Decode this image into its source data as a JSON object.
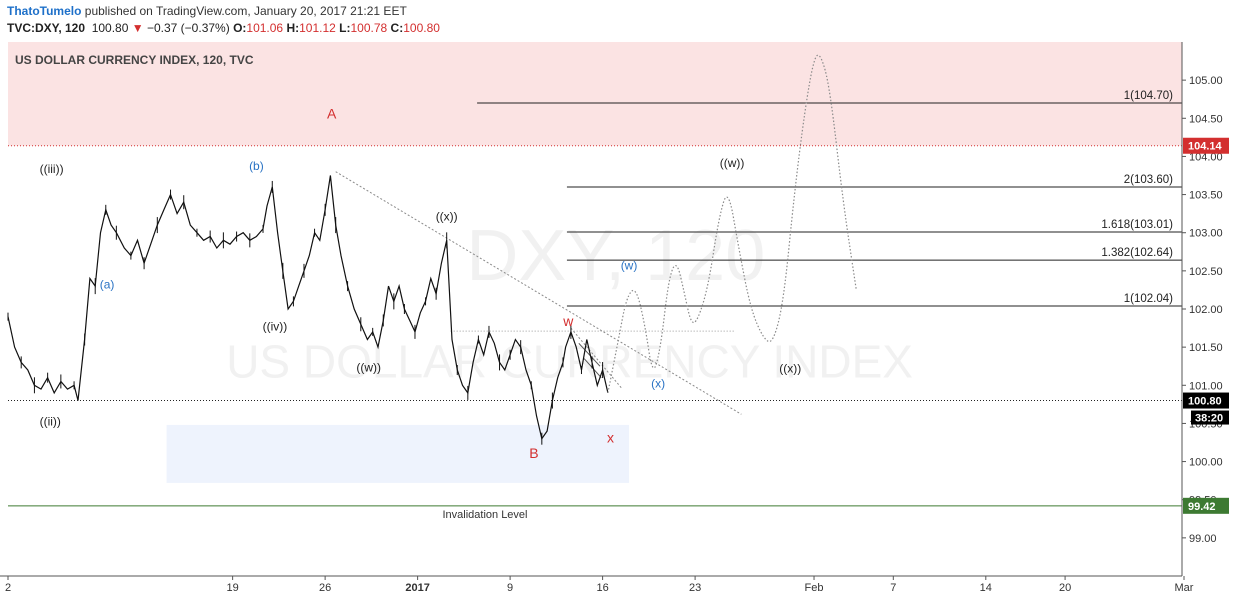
{
  "header": {
    "author": "ThatoTumelo",
    "published": "published on TradingView.com, January 20, 2017 21:21 EET",
    "ticker": "TVC:DXY, 120",
    "last": "100.80",
    "change_arrow": "▼",
    "change": "−0.37 (−0.37%)",
    "o_label": "O:",
    "o_value": "101.06",
    "h_label": "H:",
    "h_value": "101.12",
    "l_label": "L:",
    "l_value": "100.78",
    "c_label": "C:",
    "c_value": "100.80"
  },
  "chart_data": {
    "type": "line",
    "title": "US DOLLAR CURRENCY INDEX, 120, TVC",
    "watermark_symbol": "DXY, 120",
    "watermark_name": "US DOLLAR CURRENCY INDEX",
    "ylim": [
      98.5,
      105.5
    ],
    "y_ticks": [
      "99.00",
      "99.50",
      "100.00",
      "100.50",
      "101.00",
      "101.50",
      "102.00",
      "102.50",
      "103.00",
      "103.50",
      "104.00",
      "104.50",
      "105.00"
    ],
    "x_ticks": [
      {
        "label": "2",
        "d": 0
      },
      {
        "label": "19",
        "d": 17
      },
      {
        "label": "26",
        "d": 24
      },
      {
        "label": "2017",
        "d": 31,
        "bold": true
      },
      {
        "label": "9",
        "d": 38
      },
      {
        "label": "16",
        "d": 45
      },
      {
        "label": "23",
        "d": 52
      },
      {
        "label": "Feb",
        "d": 61
      },
      {
        "label": "7",
        "d": 67
      },
      {
        "label": "14",
        "d": 74
      },
      {
        "label": "20",
        "d": 80
      },
      {
        "label": "Mar",
        "d": 89
      }
    ],
    "xlim": [
      0,
      89
    ],
    "price_series": [
      [
        0,
        101.9
      ],
      [
        0.5,
        101.5
      ],
      [
        1,
        101.3
      ],
      [
        1.5,
        101.2
      ],
      [
        2,
        101.0
      ],
      [
        2.5,
        100.95
      ],
      [
        3,
        101.1
      ],
      [
        3.5,
        100.9
      ],
      [
        4,
        101.05
      ],
      [
        4.5,
        100.95
      ],
      [
        5,
        101.0
      ],
      [
        5.3,
        100.8
      ],
      [
        5.8,
        101.6
      ],
      [
        6.2,
        102.4
      ],
      [
        6.6,
        102.3
      ],
      [
        7,
        103.0
      ],
      [
        7.4,
        103.3
      ],
      [
        7.8,
        103.1
      ],
      [
        8.2,
        103.0
      ],
      [
        8.8,
        102.8
      ],
      [
        9.3,
        102.7
      ],
      [
        9.8,
        102.9
      ],
      [
        10.3,
        102.6
      ],
      [
        10.8,
        102.85
      ],
      [
        11.3,
        103.1
      ],
      [
        11.8,
        103.3
      ],
      [
        12.3,
        103.5
      ],
      [
        12.8,
        103.25
      ],
      [
        13.3,
        103.4
      ],
      [
        13.8,
        103.1
      ],
      [
        14.3,
        103.0
      ],
      [
        14.8,
        102.9
      ],
      [
        15.3,
        102.95
      ],
      [
        15.8,
        102.8
      ],
      [
        16.3,
        102.9
      ],
      [
        16.8,
        102.85
      ],
      [
        17.3,
        102.95
      ],
      [
        17.8,
        103.0
      ],
      [
        18.3,
        102.9
      ],
      [
        18.8,
        102.95
      ],
      [
        19.3,
        103.05
      ],
      [
        19.6,
        103.35
      ],
      [
        20.0,
        103.6
      ],
      [
        20.4,
        103.0
      ],
      [
        20.8,
        102.5
      ],
      [
        21.2,
        102.0
      ],
      [
        21.6,
        102.1
      ],
      [
        22.0,
        102.3
      ],
      [
        22.4,
        102.5
      ],
      [
        22.8,
        102.7
      ],
      [
        23.2,
        103.0
      ],
      [
        23.6,
        102.9
      ],
      [
        24.0,
        103.3
      ],
      [
        24.4,
        103.75
      ],
      [
        24.8,
        103.1
      ],
      [
        25.2,
        102.7
      ],
      [
        25.7,
        102.3
      ],
      [
        26.2,
        102.0
      ],
      [
        26.7,
        101.8
      ],
      [
        27.2,
        101.6
      ],
      [
        27.6,
        101.7
      ],
      [
        28.0,
        101.5
      ],
      [
        28.4,
        101.85
      ],
      [
        28.8,
        102.3
      ],
      [
        29.2,
        102.1
      ],
      [
        29.6,
        102.3
      ],
      [
        30.0,
        102.0
      ],
      [
        30.4,
        101.85
      ],
      [
        30.8,
        101.7
      ],
      [
        31.2,
        101.95
      ],
      [
        31.6,
        102.1
      ],
      [
        32.0,
        102.4
      ],
      [
        32.4,
        102.2
      ],
      [
        32.8,
        102.6
      ],
      [
        33.2,
        102.9
      ],
      [
        33.6,
        101.6
      ],
      [
        34.0,
        101.2
      ],
      [
        34.4,
        101.0
      ],
      [
        34.8,
        100.9
      ],
      [
        35.2,
        101.3
      ],
      [
        35.6,
        101.6
      ],
      [
        36.0,
        101.4
      ],
      [
        36.4,
        101.7
      ],
      [
        36.8,
        101.55
      ],
      [
        37.2,
        101.3
      ],
      [
        37.6,
        101.2
      ],
      [
        38.0,
        101.4
      ],
      [
        38.4,
        101.6
      ],
      [
        38.8,
        101.5
      ],
      [
        39.2,
        101.2
      ],
      [
        39.6,
        101.0
      ],
      [
        40.0,
        100.6
      ],
      [
        40.4,
        100.3
      ],
      [
        40.8,
        100.4
      ],
      [
        41.2,
        100.8
      ],
      [
        41.6,
        101.1
      ],
      [
        42.0,
        101.3
      ],
      [
        42.2,
        101.5
      ],
      [
        42.6,
        101.7
      ],
      [
        43.0,
        101.5
      ],
      [
        43.4,
        101.2
      ],
      [
        43.8,
        101.6
      ],
      [
        44.2,
        101.3
      ],
      [
        44.6,
        101.0
      ],
      [
        45.0,
        101.2
      ],
      [
        45.4,
        100.9
      ]
    ],
    "projection_path": [
      [
        45.4,
        100.9
      ],
      [
        46.2,
        101.6
      ],
      [
        46.8,
        102.15
      ],
      [
        47.5,
        102.3
      ],
      [
        48.2,
        101.8
      ],
      [
        48.8,
        101.1
      ],
      [
        49.4,
        101.5
      ],
      [
        50.0,
        102.4
      ],
      [
        50.6,
        102.65
      ],
      [
        51.2,
        102.2
      ],
      [
        51.7,
        101.8
      ],
      [
        52.2,
        101.85
      ],
      [
        53.0,
        102.3
      ],
      [
        53.8,
        103.2
      ],
      [
        54.5,
        103.6
      ],
      [
        55.3,
        102.8
      ],
      [
        56.2,
        102.0
      ],
      [
        57.2,
        101.6
      ],
      [
        57.9,
        101.55
      ],
      [
        58.7,
        102.1
      ],
      [
        59.5,
        103.5
      ],
      [
        60.3,
        104.6
      ],
      [
        61.0,
        105.3
      ],
      [
        61.5,
        105.35
      ],
      [
        62.2,
        104.9
      ],
      [
        63.2,
        103.4
      ],
      [
        64.2,
        102.25
      ]
    ],
    "trendline": {
      "from": [
        24.8,
        103.8
      ],
      "to": [
        55.5,
        100.62
      ]
    },
    "small_trendline": {
      "from": [
        42.6,
        101.75
      ],
      "to": [
        46.5,
        100.95
      ]
    },
    "dotted_level": {
      "from": [
        33.5,
        101.71
      ],
      "to": [
        55.0,
        101.71
      ]
    },
    "channel_lines": [
      {
        "from": [
          43.2,
          101.55
        ],
        "to": [
          44.8,
          101.25
        ]
      },
      {
        "from": [
          43.6,
          101.35
        ],
        "to": [
          44.9,
          101.1
        ]
      }
    ],
    "resistance_zone": {
      "from": 104.14,
      "to": 105.5,
      "color": "#fbe3e3"
    },
    "resistance_price": "104.14",
    "support_zone": {
      "x0": 12.0,
      "x1": 47.0,
      "y0": 99.72,
      "y1": 100.48,
      "color": "#eef3fd"
    },
    "last_price": 100.8,
    "last_price_label": "100.80",
    "countdown": "38:20",
    "invalidation": {
      "price": 99.42,
      "label": "Invalidation Level",
      "price_label": "99.42",
      "color": "#3d7a32"
    },
    "targets": [
      {
        "label": "1(104.70)",
        "price": 104.7,
        "x_start": 35.5
      },
      {
        "label": "2(103.60)",
        "price": 103.6,
        "x_start": 42.3
      },
      {
        "label": "1.618(103.01)",
        "price": 103.01,
        "x_start": 42.3
      },
      {
        "label": "1.382(102.64)",
        "price": 102.64,
        "x_start": 42.3
      },
      {
        "label": "1(102.04)",
        "price": 102.04,
        "x_start": 42.3
      }
    ],
    "wave_labels": [
      {
        "text": "A",
        "d": 24.5,
        "p": 104.5,
        "color": "#d32f2f",
        "size": 14
      },
      {
        "text": "B",
        "d": 39.8,
        "p": 100.05,
        "color": "#d32f2f",
        "size": 14
      },
      {
        "text": "w",
        "d": 42.4,
        "p": 101.78,
        "color": "#d32f2f",
        "size": 14
      },
      {
        "text": "x",
        "d": 45.6,
        "p": 100.25,
        "color": "#d32f2f",
        "size": 14
      },
      {
        "text": "((iii))",
        "d": 3.3,
        "p": 103.78,
        "color": "#222222",
        "size": 12
      },
      {
        "text": "((ii))",
        "d": 3.2,
        "p": 100.47,
        "color": "#222222",
        "size": 12
      },
      {
        "text": "(a)",
        "d": 7.5,
        "p": 102.27,
        "color": "#2a73c4",
        "size": 12
      },
      {
        "text": "(b)",
        "d": 18.8,
        "p": 103.82,
        "color": "#2a73c4",
        "size": 12
      },
      {
        "text": "((iv))",
        "d": 20.2,
        "p": 101.72,
        "color": "#222222",
        "size": 12
      },
      {
        "text": "((w))",
        "d": 27.3,
        "p": 101.18,
        "color": "#222222",
        "size": 12
      },
      {
        "text": "((x))",
        "d": 33.2,
        "p": 103.16,
        "color": "#222222",
        "size": 12
      },
      {
        "text": "(w)",
        "d": 47.0,
        "p": 102.52,
        "color": "#2a73c4",
        "size": 12
      },
      {
        "text": "(x)",
        "d": 49.2,
        "p": 100.97,
        "color": "#2a73c4",
        "size": 12
      },
      {
        "text": "((w))",
        "d": 54.8,
        "p": 103.86,
        "color": "#222222",
        "size": 12
      },
      {
        "text": "((x))",
        "d": 59.2,
        "p": 101.17,
        "color": "#222222",
        "size": 12
      }
    ]
  },
  "colors": {
    "price": "#111111",
    "projection": "#8a8a8a",
    "grid_text": "#333333",
    "red": "#d32f2f",
    "blue": "#2a73c4"
  }
}
